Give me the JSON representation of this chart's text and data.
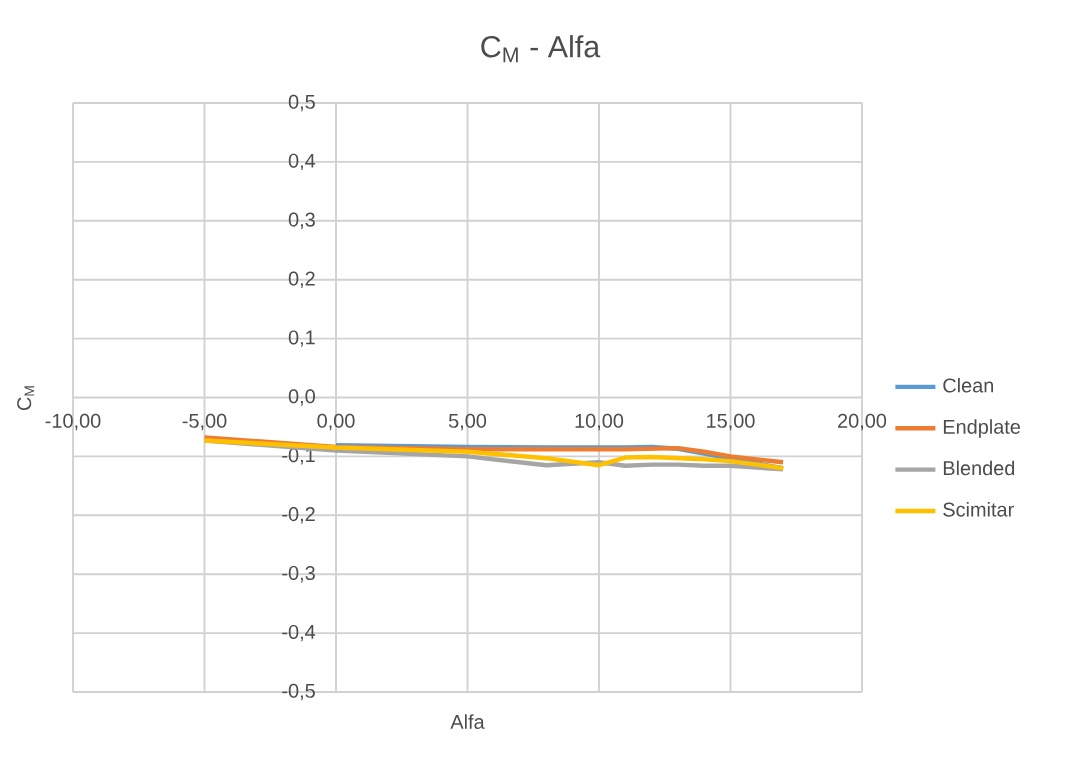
{
  "chart_data": {
    "type": "line",
    "title": "C$_{M}$ - Alfa",
    "xlabel": "Alfa",
    "ylabel": "C$_{M}$",
    "x": [
      -5,
      0,
      5,
      8,
      10,
      11,
      12,
      13,
      14,
      15,
      17
    ],
    "series": [
      {
        "name": "Clean",
        "color": "#5b9bd5",
        "values": [
          null,
          -0.081,
          -0.084,
          -0.085,
          -0.085,
          -0.085,
          -0.084,
          -0.087,
          -0.095,
          -0.104,
          -0.12
        ]
      },
      {
        "name": "Endplate",
        "color": "#ed7d31",
        "values": [
          -0.068,
          -0.084,
          -0.088,
          -0.088,
          -0.088,
          -0.088,
          -0.087,
          -0.086,
          -0.092,
          -0.1,
          -0.11
        ]
      },
      {
        "name": "Blended",
        "color": "#a5a5a5",
        "values": [
          -0.073,
          -0.09,
          -0.1,
          -0.115,
          -0.11,
          -0.116,
          -0.114,
          -0.114,
          -0.116,
          -0.116,
          -0.122
        ]
      },
      {
        "name": "Scimitar",
        "color": "#ffc000",
        "values": [
          -0.073,
          -0.085,
          -0.092,
          -0.103,
          -0.115,
          -0.102,
          -0.101,
          -0.103,
          -0.105,
          -0.108,
          -0.12
        ]
      }
    ],
    "xlim": [
      -10,
      20
    ],
    "ylim": [
      -0.5,
      0.5
    ],
    "xticks": [
      {
        "value": -10,
        "label": "-10,00"
      },
      {
        "value": -5,
        "label": "-5,00"
      },
      {
        "value": 0,
        "label": "0,00"
      },
      {
        "value": 5,
        "label": "5,00"
      },
      {
        "value": 10,
        "label": "10,00"
      },
      {
        "value": 15,
        "label": "15,00"
      },
      {
        "value": 20,
        "label": "20,00"
      }
    ],
    "yticks": [
      {
        "value": -0.5,
        "label": "-0,5"
      },
      {
        "value": -0.4,
        "label": "-0,4"
      },
      {
        "value": -0.3,
        "label": "-0,3"
      },
      {
        "value": -0.2,
        "label": "-0,2"
      },
      {
        "value": -0.1,
        "label": "-0,1"
      },
      {
        "value": 0,
        "label": "0,0"
      },
      {
        "value": 0.1,
        "label": "0,1"
      },
      {
        "value": 0.2,
        "label": "0,2"
      },
      {
        "value": 0.3,
        "label": "0,3"
      },
      {
        "value": 0.4,
        "label": "0,4"
      },
      {
        "value": 0.5,
        "label": "0,5"
      }
    ],
    "grid": true,
    "legend": "right",
    "marker": "none",
    "line_style": "solid"
  }
}
